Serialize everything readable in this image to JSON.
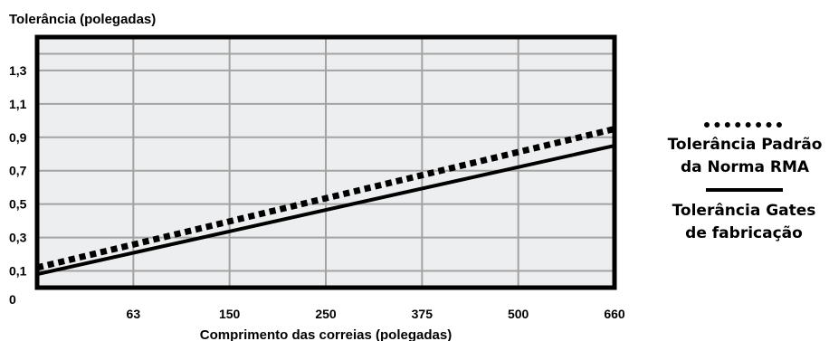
{
  "chart_data": {
    "type": "line",
    "ylabel": "Tolerância (polegadas)",
    "xlabel": "Comprimento das correias (polegadas)",
    "x_ticks": [
      "63",
      "150",
      "250",
      "375",
      "500",
      "660"
    ],
    "y_ticks": [
      "0",
      "0,1",
      "0,3",
      "0,5",
      "0,7",
      "0,9",
      "1,1",
      "1,3"
    ],
    "y_tick_values": [
      0,
      0.1,
      0.3,
      0.5,
      0.7,
      0.9,
      1.1,
      1.3
    ],
    "grid": true,
    "legend_position": "right",
    "series": [
      {
        "name": "Tolerância Padrão da Norma RMA",
        "legend_lines": [
          "Tolerância Padrão",
          "da Norma RMA"
        ],
        "style": "dotted",
        "x_index": [
          0,
          6
        ],
        "y": [
          0.12,
          0.95
        ]
      },
      {
        "name": "Tolerância Gates de fabricação",
        "legend_lines": [
          "Tolerância Gates",
          "de fabricação"
        ],
        "style": "solid",
        "x_index": [
          0,
          6
        ],
        "y": [
          0.08,
          0.85
        ]
      }
    ],
    "colors": {
      "plot_background": "#eceeef",
      "grid": "#a3a3a3",
      "lines": "#000000"
    }
  }
}
